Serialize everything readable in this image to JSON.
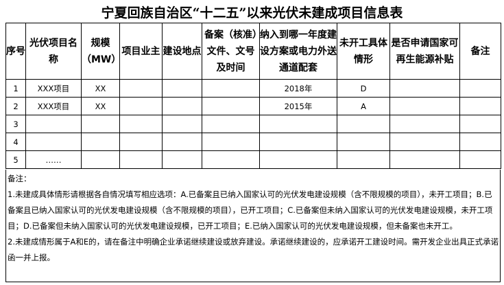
{
  "title": "宁夏回族自治区“十二五”以来光伏未建成项目信息表",
  "columns": [
    "序号",
    "光伏项目名称",
    "规模（MW）",
    "项目业主",
    "建设地点",
    "备案（核准）文件、文号及时间",
    "纳入到哪一年度建设方案或电力外送通道配套",
    "未开工具体情形",
    "是否申请国家可再生能源补贴",
    "备注"
  ],
  "rows": [
    [
      "1",
      "XXX项目",
      "XX",
      "",
      "",
      "",
      "2018年",
      "D",
      "",
      ""
    ],
    [
      "2",
      "XXX项目",
      "XX",
      "",
      "",
      "",
      "2015年",
      "A",
      "",
      ""
    ],
    [
      "3",
      "",
      "",
      "",
      "",
      "",
      "",
      "",
      "",
      ""
    ],
    [
      "4",
      "",
      "",
      "",
      "",
      "",
      "",
      "",
      "",
      ""
    ],
    [
      "5",
      "……",
      "",
      "",
      "",
      "",
      "",
      "",
      "",
      ""
    ]
  ],
  "notes": {
    "label": "备注：",
    "items": [
      "1.未建成具体情形请根据各自情况填写相应选项：A.已备案且已纳入国家认可的光伏发电建设规模（含不限规模的项目），未开工项目；B.已备案且已纳入国家认可的光伏发电建设规模（含不限规模的项目），已开工项目；C.已备案但未纳入国家认可的光伏发电建设规模，未开工项目；D.已备案但未纳入国家认可的光伏发电建设规模，已开工项目；E.已纳入国家认可的光伏发电建设规模，但未备案也未开工。",
      "2.未建成情形属于A和E的，请在备注中明确企业承诺继续建设或放弃建设。承诺继续建设的，应承诺开工建设时间。需开发企业出具正式承诺函一并上报。"
    ]
  }
}
